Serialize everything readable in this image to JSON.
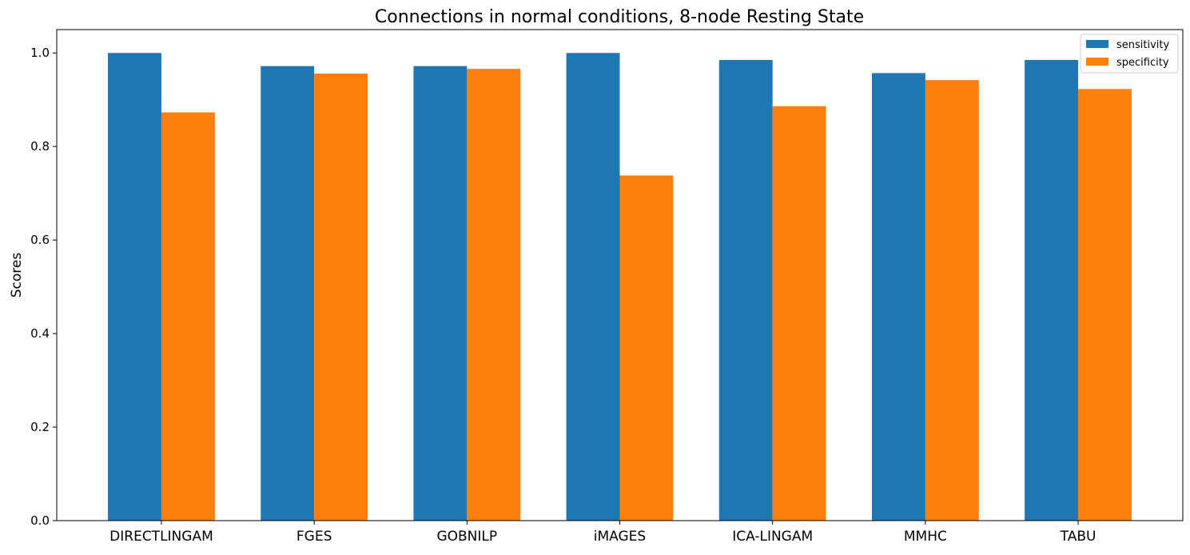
{
  "chart_data": {
    "type": "bar",
    "title": "Connections in normal conditions, 8-node Resting State",
    "xlabel": "",
    "ylabel": "Scores",
    "categories": [
      "DIRECTLINGAM",
      "FGES",
      "GOBNILP",
      "iMAGES",
      "ICA-LINGAM",
      "MMHC",
      "TABU"
    ],
    "series": [
      {
        "name": "sensitivity",
        "color": "#1f77b4",
        "values": [
          1.0,
          0.972,
          0.972,
          1.0,
          0.985,
          0.957,
          0.985
        ]
      },
      {
        "name": "specificity",
        "color": "#ff7f0e",
        "values": [
          0.873,
          0.956,
          0.966,
          0.738,
          0.886,
          0.942,
          0.923
        ]
      }
    ],
    "ylim": [
      0,
      1.05
    ],
    "yticks": [
      0.0,
      0.2,
      0.4,
      0.6,
      0.8,
      1.0
    ],
    "ytick_labels": [
      "0.0",
      "0.2",
      "0.4",
      "0.6",
      "0.8",
      "1.0"
    ],
    "grid": false,
    "legend_position": "top-right"
  }
}
